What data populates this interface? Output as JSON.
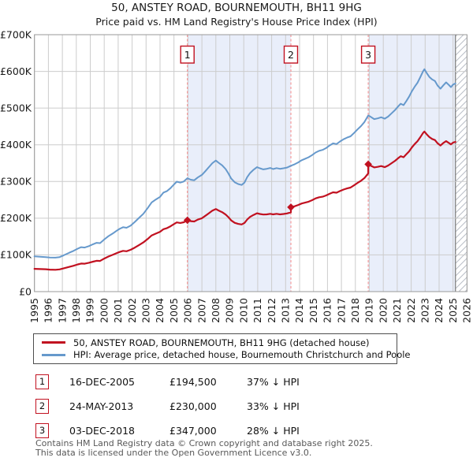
{
  "chart_data": {
    "type": "line",
    "title": "50, ANSTEY ROAD, BOURNEMOUTH, BH11 9HG",
    "subtitle": "Price paid vs. HM Land Registry's House Price Index (HPI)",
    "units": "GBP thousands",
    "xlim": [
      1995,
      2026
    ],
    "ylim": [
      0,
      700
    ],
    "grid": true,
    "x_axis": {
      "ticks": [
        1995,
        1996,
        1997,
        1998,
        1999,
        2000,
        2001,
        2002,
        2003,
        2004,
        2005,
        2006,
        2007,
        2008,
        2009,
        2010,
        2011,
        2012,
        2013,
        2014,
        2015,
        2016,
        2017,
        2018,
        2019,
        2020,
        2021,
        2022,
        2023,
        2024,
        2025,
        2026
      ]
    },
    "y_axis": {
      "ticks": [
        {
          "v": 0,
          "label": "£0"
        },
        {
          "v": 100,
          "label": "£100K"
        },
        {
          "v": 200,
          "label": "£200K"
        },
        {
          "v": 300,
          "label": "£300K"
        },
        {
          "v": 400,
          "label": "£400K"
        },
        {
          "v": 500,
          "label": "£500K"
        },
        {
          "v": 600,
          "label": "£600K"
        },
        {
          "v": 700,
          "label": "£700K"
        }
      ]
    },
    "series": [
      {
        "name": "HPI: Average price, detached house, Bournemouth Christchurch and Poole",
        "color": "#6699cc",
        "width": 2,
        "points": [
          [
            1995.0,
            96
          ],
          [
            1995.4,
            95
          ],
          [
            1995.8,
            94
          ],
          [
            1996.1,
            93
          ],
          [
            1996.5,
            92.5
          ],
          [
            1996.8,
            94
          ],
          [
            1997.1,
            99
          ],
          [
            1997.5,
            106
          ],
          [
            1997.8,
            111
          ],
          [
            1998.1,
            117
          ],
          [
            1998.35,
            121
          ],
          [
            1998.6,
            120
          ],
          [
            1998.9,
            124
          ],
          [
            1999.2,
            129
          ],
          [
            1999.45,
            133
          ],
          [
            1999.7,
            132
          ],
          [
            2000.0,
            142
          ],
          [
            2000.3,
            151
          ],
          [
            2000.6,
            158
          ],
          [
            2000.9,
            166
          ],
          [
            2001.1,
            171
          ],
          [
            2001.35,
            175.5
          ],
          [
            2001.6,
            174
          ],
          [
            2001.9,
            180
          ],
          [
            2002.2,
            190
          ],
          [
            2002.5,
            201
          ],
          [
            2002.8,
            212
          ],
          [
            2003.1,
            227
          ],
          [
            2003.4,
            243
          ],
          [
            2003.7,
            251
          ],
          [
            2004.0,
            258
          ],
          [
            2004.25,
            270
          ],
          [
            2004.5,
            274
          ],
          [
            2004.75,
            282
          ],
          [
            2005.0,
            292
          ],
          [
            2005.2,
            299.5
          ],
          [
            2005.45,
            297
          ],
          [
            2005.7,
            300
          ],
          [
            2005.96,
            309
          ],
          [
            2006.2,
            305
          ],
          [
            2006.45,
            303.5
          ],
          [
            2006.7,
            311
          ],
          [
            2007.0,
            318
          ],
          [
            2007.25,
            328
          ],
          [
            2007.5,
            339
          ],
          [
            2007.75,
            350
          ],
          [
            2008.0,
            357
          ],
          [
            2008.2,
            351
          ],
          [
            2008.45,
            344
          ],
          [
            2008.7,
            334
          ],
          [
            2008.9,
            322
          ],
          [
            2009.1,
            308
          ],
          [
            2009.35,
            298
          ],
          [
            2009.6,
            293
          ],
          [
            2009.85,
            290.5
          ],
          [
            2010.05,
            297
          ],
          [
            2010.25,
            312
          ],
          [
            2010.45,
            323
          ],
          [
            2010.7,
            332
          ],
          [
            2010.95,
            339
          ],
          [
            2011.15,
            336
          ],
          [
            2011.4,
            333
          ],
          [
            2011.65,
            334.5
          ],
          [
            2011.9,
            337
          ],
          [
            2012.1,
            334
          ],
          [
            2012.35,
            336.5
          ],
          [
            2012.6,
            334.5
          ],
          [
            2012.85,
            336
          ],
          [
            2013.1,
            338
          ],
          [
            2013.38,
            343
          ],
          [
            2013.65,
            347
          ],
          [
            2013.9,
            352
          ],
          [
            2014.15,
            358
          ],
          [
            2014.4,
            362
          ],
          [
            2014.65,
            366
          ],
          [
            2014.9,
            372
          ],
          [
            2015.15,
            379
          ],
          [
            2015.4,
            383.5
          ],
          [
            2015.65,
            386
          ],
          [
            2015.9,
            391
          ],
          [
            2016.15,
            398
          ],
          [
            2016.4,
            404
          ],
          [
            2016.65,
            402
          ],
          [
            2016.9,
            409
          ],
          [
            2017.15,
            415
          ],
          [
            2017.4,
            419.5
          ],
          [
            2017.65,
            423
          ],
          [
            2017.9,
            432
          ],
          [
            2018.15,
            442
          ],
          [
            2018.4,
            451
          ],
          [
            2018.65,
            462
          ],
          [
            2018.92,
            480
          ],
          [
            2019.1,
            476
          ],
          [
            2019.35,
            470
          ],
          [
            2019.6,
            472
          ],
          [
            2019.85,
            475
          ],
          [
            2020.1,
            471
          ],
          [
            2020.35,
            477
          ],
          [
            2020.6,
            486
          ],
          [
            2020.85,
            495
          ],
          [
            2021.05,
            504
          ],
          [
            2021.25,
            512
          ],
          [
            2021.45,
            508
          ],
          [
            2021.65,
            519
          ],
          [
            2021.85,
            531
          ],
          [
            2022.05,
            546
          ],
          [
            2022.25,
            558
          ],
          [
            2022.45,
            569
          ],
          [
            2022.65,
            584
          ],
          [
            2022.85,
            600
          ],
          [
            2022.95,
            606
          ],
          [
            2023.1,
            596
          ],
          [
            2023.3,
            585
          ],
          [
            2023.5,
            578
          ],
          [
            2023.7,
            574
          ],
          [
            2023.9,
            561
          ],
          [
            2024.1,
            553
          ],
          [
            2024.3,
            562
          ],
          [
            2024.5,
            570
          ],
          [
            2024.7,
            563
          ],
          [
            2024.85,
            557
          ],
          [
            2025.0,
            564
          ],
          [
            2025.17,
            567
          ]
        ]
      },
      {
        "name": "50, ANSTEY ROAD, BOURNEMOUTH, BH11 9HG (detached house)",
        "color": "#c11120",
        "width": 2.2,
        "points": [
          [
            1995.0,
            62
          ],
          [
            1995.4,
            61.5
          ],
          [
            1995.8,
            61
          ],
          [
            1996.1,
            60
          ],
          [
            1996.5,
            59.5
          ],
          [
            1996.8,
            60.5
          ],
          [
            1997.1,
            63.5
          ],
          [
            1997.5,
            67.5
          ],
          [
            1997.8,
            70.5
          ],
          [
            1998.1,
            74
          ],
          [
            1998.35,
            76.5
          ],
          [
            1998.6,
            76
          ],
          [
            1998.9,
            78.5
          ],
          [
            1999.2,
            81.5
          ],
          [
            1999.45,
            84
          ],
          [
            1999.7,
            83.5
          ],
          [
            2000.0,
            90
          ],
          [
            2000.3,
            95.5
          ],
          [
            2000.6,
            100
          ],
          [
            2000.9,
            105
          ],
          [
            2001.1,
            108
          ],
          [
            2001.35,
            111
          ],
          [
            2001.6,
            110
          ],
          [
            2001.9,
            114
          ],
          [
            2002.2,
            120
          ],
          [
            2002.5,
            127
          ],
          [
            2002.8,
            134
          ],
          [
            2003.1,
            143
          ],
          [
            2003.4,
            153
          ],
          [
            2003.7,
            158
          ],
          [
            2004.0,
            163
          ],
          [
            2004.25,
            170
          ],
          [
            2004.5,
            173
          ],
          [
            2004.75,
            178
          ],
          [
            2005.0,
            184
          ],
          [
            2005.2,
            188.5
          ],
          [
            2005.45,
            187
          ],
          [
            2005.7,
            189
          ],
          [
            2005.96,
            194.5
          ],
          [
            2006.2,
            192
          ],
          [
            2006.45,
            191
          ],
          [
            2006.7,
            196
          ],
          [
            2007.0,
            200
          ],
          [
            2007.25,
            206.5
          ],
          [
            2007.5,
            213.5
          ],
          [
            2007.75,
            220.5
          ],
          [
            2008.0,
            225
          ],
          [
            2008.2,
            221
          ],
          [
            2008.45,
            216.5
          ],
          [
            2008.7,
            210
          ],
          [
            2008.9,
            203
          ],
          [
            2009.1,
            194
          ],
          [
            2009.35,
            187.5
          ],
          [
            2009.6,
            184.5
          ],
          [
            2009.85,
            183
          ],
          [
            2010.05,
            187
          ],
          [
            2010.25,
            196.5
          ],
          [
            2010.45,
            203.5
          ],
          [
            2010.7,
            209
          ],
          [
            2010.95,
            213.5
          ],
          [
            2011.15,
            211.5
          ],
          [
            2011.4,
            210
          ],
          [
            2011.65,
            210.5
          ],
          [
            2011.9,
            212
          ],
          [
            2012.1,
            210.5
          ],
          [
            2012.35,
            212
          ],
          [
            2012.6,
            210.5
          ],
          [
            2012.85,
            211.5
          ],
          [
            2013.1,
            213
          ],
          [
            2013.38,
            216
          ],
          [
            2013.38,
            230
          ],
          [
            2013.65,
            232.5
          ],
          [
            2013.9,
            236
          ],
          [
            2014.15,
            240
          ],
          [
            2014.4,
            242.5
          ],
          [
            2014.65,
            245
          ],
          [
            2014.9,
            249
          ],
          [
            2015.15,
            254
          ],
          [
            2015.4,
            257
          ],
          [
            2015.65,
            258.5
          ],
          [
            2015.9,
            262
          ],
          [
            2016.15,
            266.5
          ],
          [
            2016.4,
            270.5
          ],
          [
            2016.65,
            269.5
          ],
          [
            2016.9,
            274
          ],
          [
            2017.15,
            278
          ],
          [
            2017.4,
            281
          ],
          [
            2017.65,
            283.5
          ],
          [
            2017.9,
            289.5
          ],
          [
            2018.15,
            296
          ],
          [
            2018.4,
            302
          ],
          [
            2018.65,
            309.5
          ],
          [
            2018.92,
            322
          ],
          [
            2018.92,
            347
          ],
          [
            2019.1,
            343
          ],
          [
            2019.35,
            338.5
          ],
          [
            2019.6,
            340
          ],
          [
            2019.85,
            342
          ],
          [
            2020.1,
            339
          ],
          [
            2020.35,
            343.5
          ],
          [
            2020.6,
            350
          ],
          [
            2020.85,
            356.5
          ],
          [
            2021.05,
            363
          ],
          [
            2021.25,
            369
          ],
          [
            2021.45,
            366
          ],
          [
            2021.65,
            374
          ],
          [
            2021.85,
            382
          ],
          [
            2022.05,
            393
          ],
          [
            2022.25,
            402
          ],
          [
            2022.45,
            410
          ],
          [
            2022.65,
            420.5
          ],
          [
            2022.85,
            432
          ],
          [
            2022.95,
            436
          ],
          [
            2023.1,
            429
          ],
          [
            2023.3,
            421
          ],
          [
            2023.5,
            416
          ],
          [
            2023.7,
            413
          ],
          [
            2023.9,
            404
          ],
          [
            2024.1,
            398
          ],
          [
            2024.3,
            405
          ],
          [
            2024.5,
            410
          ],
          [
            2024.7,
            405
          ],
          [
            2024.85,
            401
          ],
          [
            2025.0,
            406
          ],
          [
            2025.17,
            408
          ]
        ]
      }
    ],
    "sale_markers": [
      {
        "n": "1",
        "year": 2005.96,
        "value_k": 194.5
      },
      {
        "n": "2",
        "year": 2013.38,
        "value_k": 230
      },
      {
        "n": "3",
        "year": 2018.92,
        "value_k": 347
      }
    ],
    "ownership_shading": [
      [
        2005.96,
        2013.38
      ],
      [
        2018.92,
        2025.17
      ]
    ],
    "future_hatch": [
      2025.17,
      2026
    ],
    "legend_position": "bottom"
  },
  "legend": {
    "items": [
      {
        "label": "50, ANSTEY ROAD, BOURNEMOUTH, BH11 9HG (detached house)",
        "color": "#c11120"
      },
      {
        "label": "HPI: Average price, detached house, Bournemouth Christchurch and Poole",
        "color": "#6699cc"
      }
    ]
  },
  "transactions": [
    {
      "num": "1",
      "date": "16-DEC-2005",
      "price": "£194,500",
      "hpi": "37% ↓ HPI"
    },
    {
      "num": "2",
      "date": "24-MAY-2013",
      "price": "£230,000",
      "hpi": "33% ↓ HPI"
    },
    {
      "num": "3",
      "date": "03-DEC-2018",
      "price": "£347,000",
      "hpi": "28% ↓ HPI"
    }
  ],
  "footer": {
    "line1": "Contains HM Land Registry data © Crown copyright and database right 2025.",
    "line2": "This data is licensed under the Open Government Licence v3.0."
  },
  "colors": {
    "property_line": "#c11120",
    "hpi_line": "#6699cc",
    "ownership_fill": "#e9eefa",
    "event_dash": "#f58f8f",
    "grid": "#cccccc",
    "plot_border": "#999999",
    "hatch_line": "#b9bec7"
  }
}
